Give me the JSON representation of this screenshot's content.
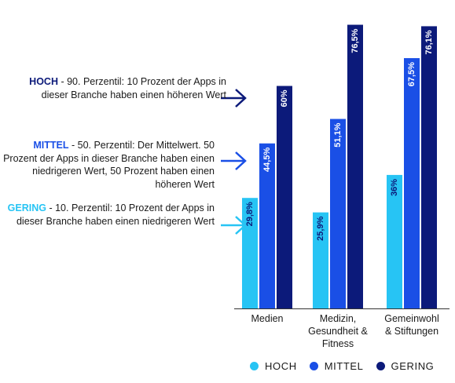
{
  "chart_data": {
    "type": "bar",
    "categories": [
      "Medien",
      "Medizin, Gesundheit & Fitness",
      "Gemeinwohl & Stiftungen"
    ],
    "category_lines": [
      [
        "Medien"
      ],
      [
        "Medizin,",
        "Gesundheit &",
        "Fitness"
      ],
      [
        "Gemeinwohl",
        "& Stiftungen"
      ]
    ],
    "series": [
      {
        "name": "HOCH",
        "values": [
          29.8,
          25.9,
          36.0
        ],
        "labels": [
          "29,8%",
          "25,9%",
          "36%"
        ],
        "color": "#27c4f4"
      },
      {
        "name": "MITTEL",
        "values": [
          44.5,
          51.1,
          67.5
        ],
        "labels": [
          "44,5%",
          "51,1%",
          "67,5%"
        ],
        "color": "#1a4fe6"
      },
      {
        "name": "GERING",
        "values": [
          60.0,
          76.5,
          76.1
        ],
        "labels": [
          "60%",
          "76,5%",
          "76,1%"
        ],
        "color": "#0c1a7a"
      }
    ],
    "ylim": [
      0,
      80
    ],
    "legend_position": "bottom-right",
    "grid": false
  },
  "annotations": [
    {
      "level": "HOCH",
      "text": " - 90. Perzentil: 10 Prozent der Apps in dieser Branche haben einen höheren Wert",
      "color": "#0c1a7a"
    },
    {
      "level": "MITTEL",
      "text": " - 50. Perzentil: Der Mittelwert. 50 Prozent der Apps in dieser Branche haben einen niedrigeren Wert, 50 Prozent haben einen höheren Wert",
      "color": "#1a4fe6"
    },
    {
      "level": "GERING",
      "text": " - 10. Perzentil: 10 Prozent der Apps in dieser Branche haben einen niedrigeren Wert",
      "color": "#27c4f4"
    }
  ],
  "legend": [
    {
      "label": "HOCH",
      "color": "#27c4f4"
    },
    {
      "label": "MITTEL",
      "color": "#1a4fe6"
    },
    {
      "label": "GERING",
      "color": "#0c1a7a"
    }
  ]
}
